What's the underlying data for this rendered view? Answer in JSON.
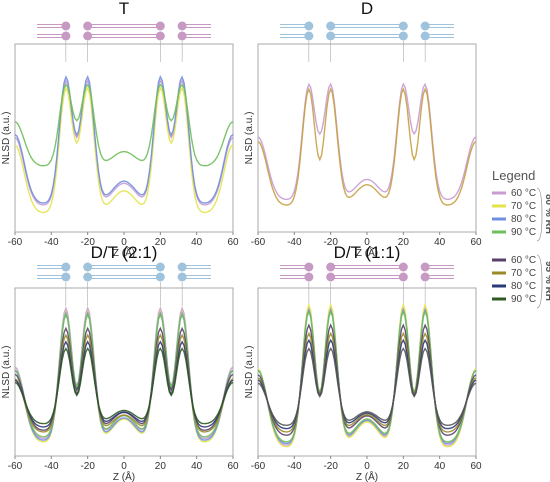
{
  "chart_data": [
    {
      "panel": "T",
      "type": "line",
      "title": "T",
      "xlabel": "Z (Å)",
      "ylabel": "NLSD (a.u.)",
      "xlim": [
        -60,
        60
      ],
      "xticks": [
        -60,
        -40,
        -20,
        0,
        20,
        40,
        60
      ],
      "bilayer_color": "#c69ac3",
      "series": [
        {
          "name": "60 °C",
          "rh": "80 % RH",
          "color": "#c89bd1",
          "peak": 0.8,
          "minimum": 0.14,
          "dip": 0.86
        },
        {
          "name": "70 °C",
          "rh": "80 % RH",
          "color": "#e3e34c",
          "peak": 0.76,
          "minimum": 0.1,
          "dip": 0.83
        },
        {
          "name": "80 °C",
          "rh": "80 % RH",
          "color": "#6f8fe0",
          "peak": 0.82,
          "minimum": 0.15,
          "dip": 0.88
        },
        {
          "name": "90 °C",
          "rh": "80 % RH",
          "color": "#6fbf5a",
          "peak": 0.78,
          "minimum": 0.35,
          "dip": 0.85
        }
      ]
    },
    {
      "panel": "D",
      "type": "line",
      "title": "D",
      "xlabel": "Z (Å)",
      "ylabel": "NLSD (a.u.)",
      "xlim": [
        -60,
        60
      ],
      "xticks": [
        -60,
        -40,
        -20,
        0,
        20,
        40,
        60
      ],
      "bilayer_color": "#9fc3dd",
      "series": [
        {
          "name": "60 °C",
          "rh": "80 % RH",
          "color": "#c89bd1",
          "peak": 0.78,
          "minimum": 0.17,
          "dip": 0.86
        },
        {
          "name": "70 °C",
          "rh": "80 % RH",
          "color": "#c8a040",
          "peak": 0.76,
          "minimum": 0.14,
          "dip": 0.7
        }
      ]
    },
    {
      "panel": "D/T (2:1)",
      "type": "line",
      "title": "D/T (2:1)",
      "xlabel": "Z (Å)",
      "ylabel": "NLSD (a.u.)",
      "xlim": [
        -60,
        60
      ],
      "xticks": [
        -60,
        -40,
        -20,
        0,
        20,
        40,
        60
      ],
      "bilayer_color": "#9fc3dd",
      "series": [
        {
          "name": "60 °C",
          "rh": "80 % RH",
          "color": "#c89bd1",
          "peak": 0.88,
          "minimum": 0.1,
          "dip": 0.82
        },
        {
          "name": "70 °C",
          "rh": "80 % RH",
          "color": "#e3e34c",
          "peak": 0.86,
          "minimum": 0.08,
          "dip": 0.8
        },
        {
          "name": "80 °C",
          "rh": "80 % RH",
          "color": "#6f8fe0",
          "peak": 0.85,
          "minimum": 0.09,
          "dip": 0.8
        },
        {
          "name": "90 °C",
          "rh": "80 % RH",
          "color": "#6fbf5a",
          "peak": 0.84,
          "minimum": 0.11,
          "dip": 0.79
        },
        {
          "name": "60 °C",
          "rh": "95 % RH",
          "color": "#5a4068",
          "peak": 0.76,
          "minimum": 0.15,
          "dip": 0.7
        },
        {
          "name": "70 °C",
          "rh": "95 % RH",
          "color": "#9a8a2a",
          "peak": 0.72,
          "minimum": 0.14,
          "dip": 0.66
        },
        {
          "name": "80 °C",
          "rh": "95 % RH",
          "color": "#2a3a7a",
          "peak": 0.68,
          "minimum": 0.17,
          "dip": 0.62
        },
        {
          "name": "90 °C",
          "rh": "95 % RH",
          "color": "#2f5a22",
          "peak": 0.64,
          "minimum": 0.19,
          "dip": 0.58
        }
      ]
    },
    {
      "panel": "D/T (1:1)",
      "type": "line",
      "title": "D/T (1:1)",
      "xlabel": "Z (Å)",
      "ylabel": "NLSD (a.u.)",
      "xlim": [
        -60,
        60
      ],
      "xticks": [
        -60,
        -40,
        -20,
        0,
        20,
        40,
        60
      ],
      "bilayer_color": "#c69ac3",
      "series": [
        {
          "name": "60 °C",
          "rh": "80 % RH",
          "color": "#c89bd1",
          "peak": 0.88,
          "minimum": 0.06,
          "dip": 0.8
        },
        {
          "name": "70 °C",
          "rh": "80 % RH",
          "color": "#e3e34c",
          "peak": 0.9,
          "minimum": 0.05,
          "dip": 0.82
        },
        {
          "name": "80 °C",
          "rh": "80 % RH",
          "color": "#6f8fe0",
          "peak": 0.87,
          "minimum": 0.07,
          "dip": 0.79
        },
        {
          "name": "90 °C",
          "rh": "80 % RH",
          "color": "#6fbf5a",
          "peak": 0.86,
          "minimum": 0.08,
          "dip": 0.78
        },
        {
          "name": "60 °C",
          "rh": "95 % RH",
          "color": "#5a4068",
          "peak": 0.78,
          "minimum": 0.12,
          "dip": 0.7
        },
        {
          "name": "70 °C",
          "rh": "95 % RH",
          "color": "#9a8a2a",
          "peak": 0.73,
          "minimum": 0.14,
          "dip": 0.66
        },
        {
          "name": "80 °C",
          "rh": "95 % RH",
          "color": "#2a3a7a",
          "peak": 0.69,
          "minimum": 0.16,
          "dip": 0.62
        },
        {
          "name": "90 °C",
          "rh": "95 % RH",
          "color": "#555555",
          "peak": 0.64,
          "minimum": 0.18,
          "dip": 0.58
        }
      ]
    }
  ],
  "legend": {
    "title": "Legend",
    "groups": [
      {
        "label": "80 % RH",
        "items": [
          {
            "label": "60 °C",
            "color": "#c89bd1"
          },
          {
            "label": "70 °C",
            "color": "#e3e34c"
          },
          {
            "label": "80 °C",
            "color": "#6f8fe0"
          },
          {
            "label": "90 °C",
            "color": "#6fbf5a"
          }
        ]
      },
      {
        "label": "95 % RH",
        "items": [
          {
            "label": "60 °C",
            "color": "#5a4068"
          },
          {
            "label": "70 °C",
            "color": "#9a8a2a"
          },
          {
            "label": "80 °C",
            "color": "#2a3a7a"
          },
          {
            "label": "90 °C",
            "color": "#2f5a22"
          }
        ]
      }
    ]
  }
}
